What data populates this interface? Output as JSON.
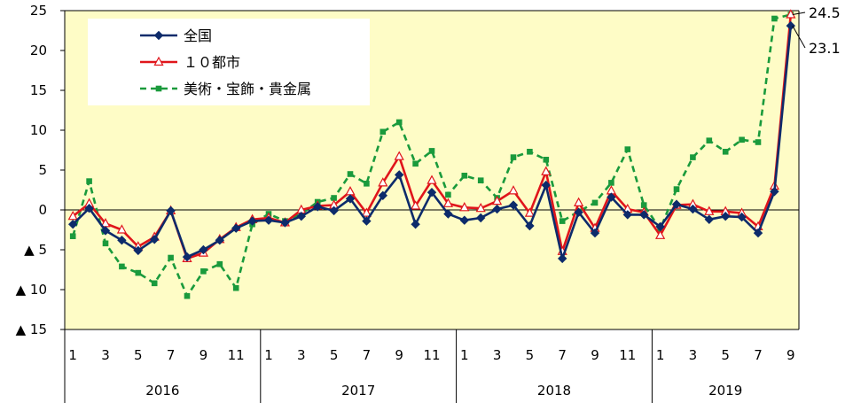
{
  "chart_data": {
    "type": "line",
    "title": "",
    "xlabel": "",
    "ylabel": "",
    "ylim": [
      -15,
      25
    ],
    "y_ticks": [
      {
        "value": 25,
        "label": "25"
      },
      {
        "value": 20,
        "label": "20"
      },
      {
        "value": 15,
        "label": "15"
      },
      {
        "value": 10,
        "label": "10"
      },
      {
        "value": 5,
        "label": "5"
      },
      {
        "value": 0,
        "label": "0"
      },
      {
        "value": -5,
        "label": "▲ 5"
      },
      {
        "value": -10,
        "label": "▲ 10"
      },
      {
        "value": -15,
        "label": "▲ 15"
      }
    ],
    "years": [
      "2016",
      "2017",
      "2018",
      "2019"
    ],
    "months": [
      1,
      2,
      3,
      4,
      5,
      6,
      7,
      8,
      9,
      10,
      11,
      12,
      1,
      2,
      3,
      4,
      5,
      6,
      7,
      8,
      9,
      10,
      11,
      12,
      1,
      2,
      3,
      4,
      5,
      6,
      7,
      8,
      9,
      10,
      11,
      12,
      1,
      2,
      3,
      4,
      5,
      6,
      7,
      8,
      9
    ],
    "month_labels": [
      "1",
      "",
      "3",
      "",
      "5",
      "",
      "7",
      "",
      "9",
      "",
      "11",
      "",
      "1",
      "",
      "3",
      "",
      "5",
      "",
      "7",
      "",
      "9",
      "",
      "11",
      "",
      "1",
      "",
      "3",
      "",
      "5",
      "",
      "7",
      "",
      "9",
      "",
      "11",
      "",
      "1",
      "",
      "3",
      "",
      "5",
      "",
      "7",
      "",
      "9"
    ],
    "grid": false,
    "legend_position": "top-left",
    "series": [
      {
        "name": "全国",
        "color": "#0d2b6b",
        "marker": "diamond",
        "values": [
          -1.8,
          0.2,
          -2.6,
          -3.8,
          -5.1,
          -3.7,
          -0.1,
          -5.9,
          -5.0,
          -3.8,
          -2.3,
          -1.4,
          -1.3,
          -1.6,
          -0.8,
          0.4,
          -0.1,
          1.4,
          -1.4,
          1.8,
          4.4,
          -1.8,
          2.2,
          -0.5,
          -1.3,
          -1.0,
          0.1,
          0.6,
          -2.0,
          3.1,
          -6.1,
          -0.3,
          -2.9,
          1.6,
          -0.6,
          -0.6,
          -2.1,
          0.7,
          0.1,
          -1.2,
          -0.8,
          -0.9,
          -2.9,
          2.3,
          23.1
        ]
      },
      {
        "name": "１０都市",
        "color": "#e0151b",
        "marker": "triangle",
        "values": [
          -0.8,
          0.8,
          -1.7,
          -2.5,
          -4.6,
          -3.4,
          -0.1,
          -6.1,
          -5.4,
          -3.7,
          -2.2,
          -1.2,
          -1.0,
          -1.6,
          0.0,
          0.5,
          0.6,
          2.3,
          -0.4,
          3.4,
          6.7,
          0.5,
          3.7,
          0.8,
          0.3,
          0.2,
          1.1,
          2.4,
          -0.4,
          4.8,
          -5.2,
          0.9,
          -2.3,
          2.4,
          0.1,
          -0.3,
          -3.2,
          0.6,
          0.7,
          -0.2,
          -0.2,
          -0.4,
          -2.1,
          3.0,
          24.5
        ]
      },
      {
        "name": "美術・宝飾・貴金属",
        "color": "#1a9a3c",
        "marker": "square",
        "values": [
          -3.3,
          3.6,
          -4.2,
          -7.1,
          -7.9,
          -9.2,
          -6.0,
          -10.8,
          -7.7,
          -6.8,
          -9.8,
          -1.8,
          -0.5,
          -1.4,
          -0.5,
          1.0,
          1.5,
          4.5,
          3.3,
          9.8,
          11.0,
          5.8,
          7.4,
          1.9,
          4.3,
          3.7,
          1.5,
          6.6,
          7.3,
          6.3,
          -1.4,
          -0.2,
          0.9,
          3.4,
          7.6,
          0.6,
          -2.4,
          2.6,
          6.6,
          8.7,
          7.3,
          8.8,
          8.5,
          24.0,
          24.5
        ]
      }
    ],
    "annotations": [
      {
        "label": "24.5",
        "series": 1,
        "index": 44
      },
      {
        "label": "23.1",
        "series": 0,
        "index": 44
      }
    ]
  }
}
